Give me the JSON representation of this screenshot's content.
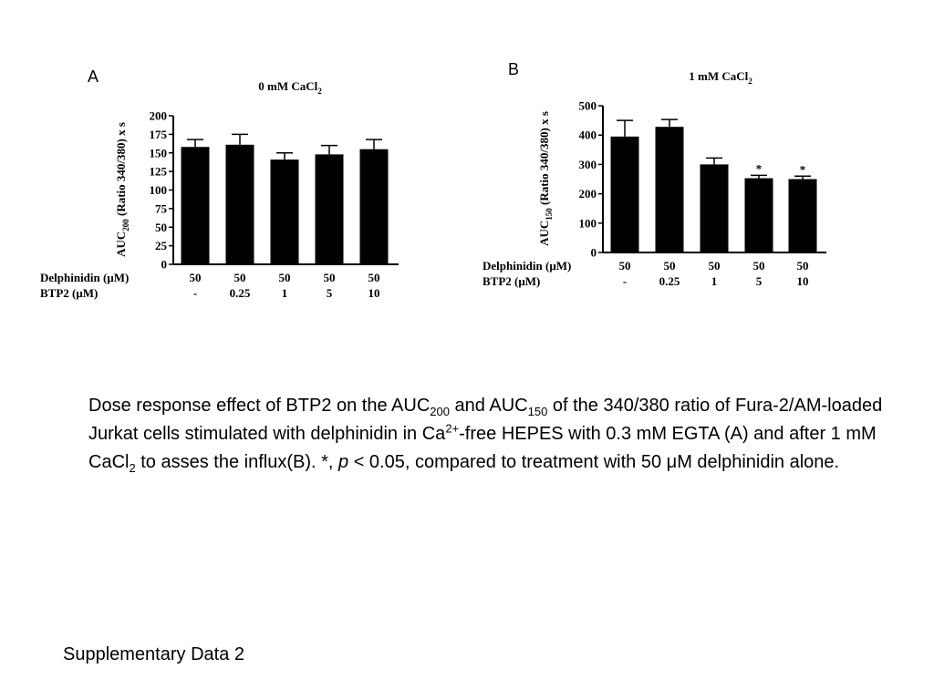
{
  "chart_data": [
    {
      "type": "bar",
      "panel": "A",
      "title_main": "0 mM CaCl",
      "title_sub": "2",
      "ylabel_main": "AUC",
      "ylabel_sub": "200",
      "ylabel_rest": " (Ratio 340/380) x s",
      "ylim": [
        0,
        200
      ],
      "yticks": [
        0,
        25,
        50,
        75,
        100,
        125,
        150,
        175,
        200
      ],
      "rows": [
        {
          "label": "Delphinidin (μM)",
          "values": [
            "50",
            "50",
            "50",
            "50",
            "50"
          ]
        },
        {
          "label": "BTP2 (μM)",
          "values": [
            "-",
            "0.25",
            "1",
            "5",
            "10"
          ]
        }
      ],
      "values": [
        158,
        161,
        141,
        148,
        155
      ],
      "errors": [
        10,
        14,
        9,
        12,
        13
      ],
      "annotations": [
        "",
        "",
        "",
        "",
        ""
      ]
    },
    {
      "type": "bar",
      "panel": "B",
      "title_main": "1 mM CaCl",
      "title_sub": "2",
      "ylabel_main": "AUC",
      "ylabel_sub": "150",
      "ylabel_rest": " (Ratio 340/380) x s",
      "ylim": [
        0,
        500
      ],
      "yticks": [
        0,
        100,
        200,
        300,
        400,
        500
      ],
      "rows": [
        {
          "label": "Delphinidin (μM)",
          "values": [
            "50",
            "50",
            "50",
            "50",
            "50"
          ]
        },
        {
          "label": "BTP2 (μM)",
          "values": [
            "-",
            "0.25",
            "1",
            "5",
            "10"
          ]
        }
      ],
      "values": [
        395,
        428,
        300,
        253,
        250
      ],
      "errors": [
        55,
        25,
        22,
        10,
        10
      ],
      "annotations": [
        "",
        "",
        "",
        "*",
        "*"
      ]
    }
  ],
  "caption": {
    "t1": "Dose response effect of BTP2 on the AUC",
    "s1": "200",
    "t2": " and AUC",
    "s2": "150",
    "t3": "  of the 340/380 ratio of Fura-2/AM-loaded Jurkat cells stimulated with delphinidin in Ca",
    "sup1": "2+",
    "t4": "-free HEPES with 0.3 mM EGTA (A) and after 1 mM CaCl",
    "s3": "2",
    "t5": " to asses the influx(B). *, ",
    "t6": "p",
    "t7": " < 0.05, compared to treatment with 50 μM delphinidin alone."
  },
  "footer": "Supplementary Data 2"
}
